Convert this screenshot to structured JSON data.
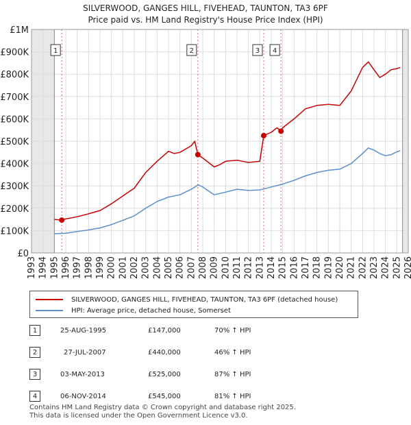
{
  "title": "SILVERWOOD, GANGES HILL, FIVEHEAD, TAUNTON, TA3 6PF",
  "subtitle": "Price paid vs. HM Land Registry's House Price Index (HPI)",
  "chart_data": {
    "type": "line",
    "ylim": [
      0,
      1000000
    ],
    "xlim": [
      1993,
      2026
    ],
    "y_ticks": [
      {
        "value": 0,
        "label": "£0"
      },
      {
        "value": 100000,
        "label": "£100K"
      },
      {
        "value": 200000,
        "label": "£200K"
      },
      {
        "value": 300000,
        "label": "£300K"
      },
      {
        "value": 400000,
        "label": "£400K"
      },
      {
        "value": 500000,
        "label": "£500K"
      },
      {
        "value": 600000,
        "label": "£600K"
      },
      {
        "value": 700000,
        "label": "£700K"
      },
      {
        "value": 800000,
        "label": "£800K"
      },
      {
        "value": 900000,
        "label": "£900K"
      },
      {
        "value": 1000000,
        "label": "£1M"
      }
    ],
    "x_ticks": [
      "1993",
      "1994",
      "1995",
      "1996",
      "1997",
      "1998",
      "1999",
      "2000",
      "2001",
      "2002",
      "2003",
      "2004",
      "2005",
      "2006",
      "2007",
      "2008",
      "2009",
      "2010",
      "2011",
      "2012",
      "2013",
      "2014",
      "2015",
      "2016",
      "2017",
      "2018",
      "2019",
      "2020",
      "2021",
      "2022",
      "2023",
      "2024",
      "2025",
      "2026"
    ],
    "data_range": [
      1995.0,
      2025.5
    ],
    "series": [
      {
        "name": "SILVERWOOD, GANGES HILL, FIVEHEAD, TAUNTON, TA3 6PF (detached house)",
        "color": "#cc0000",
        "x": [
          1995.0,
          1995.65,
          1996,
          1997,
          1998,
          1999,
          2000,
          2001,
          2002,
          2003,
          2004,
          2005,
          2005.5,
          2006,
          2007,
          2007.3,
          2007.57,
          2008,
          2009,
          2009.5,
          2010,
          2011,
          2012,
          2013,
          2013.34,
          2014,
          2014.5,
          2014.85,
          2015,
          2016,
          2017,
          2018,
          2019,
          2020,
          2021,
          2022,
          2022.5,
          2023,
          2023.5,
          2024,
          2024.5,
          2025,
          2025.3
        ],
        "values": [
          150000,
          147000,
          152000,
          162000,
          175000,
          190000,
          220000,
          255000,
          290000,
          360000,
          410000,
          455000,
          445000,
          450000,
          480000,
          500000,
          440000,
          425000,
          385000,
          395000,
          410000,
          415000,
          405000,
          410000,
          525000,
          540000,
          560000,
          545000,
          560000,
          600000,
          645000,
          660000,
          665000,
          660000,
          725000,
          830000,
          855000,
          820000,
          785000,
          800000,
          820000,
          825000,
          830000
        ]
      },
      {
        "name": "HPI: Average price, detached house, Somerset",
        "color": "#5b8fcc",
        "x": [
          1995.0,
          1996,
          1997,
          1998,
          1999,
          2000,
          2001,
          2002,
          2003,
          2004,
          2005,
          2006,
          2007,
          2007.6,
          2008,
          2009,
          2010,
          2011,
          2012,
          2013,
          2014,
          2015,
          2016,
          2017,
          2018,
          2019,
          2020,
          2021,
          2022,
          2022.5,
          2023,
          2023.5,
          2024,
          2024.5,
          2025,
          2025.3
        ],
        "values": [
          86000,
          88000,
          96000,
          103000,
          112000,
          127000,
          146000,
          166000,
          200000,
          230000,
          250000,
          260000,
          285000,
          305000,
          295000,
          260000,
          272000,
          285000,
          280000,
          282000,
          295000,
          308000,
          325000,
          345000,
          360000,
          370000,
          375000,
          400000,
          445000,
          470000,
          460000,
          445000,
          435000,
          440000,
          452000,
          458000
        ]
      }
    ],
    "sales": [
      {
        "n": "1",
        "x": 1995.65,
        "value": 147000
      },
      {
        "n": "2",
        "x": 2007.57,
        "value": 440000
      },
      {
        "n": "3",
        "x": 2013.34,
        "value": 525000
      },
      {
        "n": "4",
        "x": 2014.85,
        "value": 545000
      }
    ]
  },
  "legend": {
    "property": "SILVERWOOD, GANGES HILL, FIVEHEAD, TAUNTON, TA3 6PF (detached house)",
    "hpi": "HPI: Average price, detached house, Somerset"
  },
  "sales_table": [
    {
      "n": "1",
      "date": "25-AUG-1995",
      "price": "£147,000",
      "hpi": "70% ↑ HPI"
    },
    {
      "n": "2",
      "date": "27-JUL-2007",
      "price": "£440,000",
      "hpi": "46% ↑ HPI"
    },
    {
      "n": "3",
      "date": "03-MAY-2013",
      "price": "£525,000",
      "hpi": "87% ↑ HPI"
    },
    {
      "n": "4",
      "date": "06-NOV-2014",
      "price": "£545,000",
      "hpi": "81% ↑ HPI"
    }
  ],
  "footer": {
    "line1": "Contains HM Land Registry data © Crown copyright and database right 2025.",
    "line2": "This data is licensed under the Open Government Licence v3.0."
  }
}
